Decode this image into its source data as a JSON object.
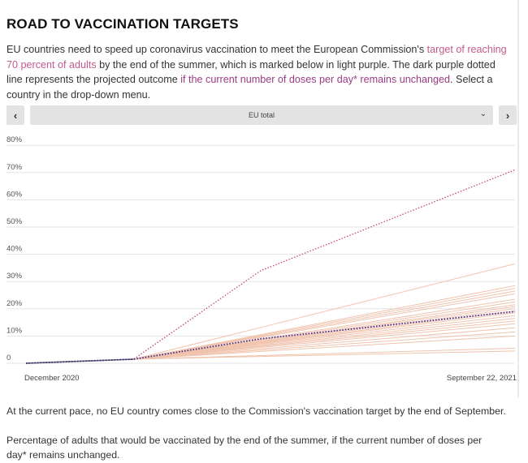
{
  "title": "ROAD TO VACCINATION TARGETS",
  "intro": {
    "part1": "EU countries need to speed up coronavirus vaccination to meet the European Commission's ",
    "link1": "target of reaching 70 percent of adults",
    "part2": " by the end of the summer, which is marked below in light purple. The dark purple dotted line represents the projected outcome ",
    "link2": "if the current number of doses per day* remains unchanged",
    "part3": ". Select a country in the drop-down menu."
  },
  "selector": {
    "prev_icon": "‹",
    "next_icon": "›",
    "selected": "EU total",
    "chevron_icon": "⌄"
  },
  "notes": {
    "pace": "At the current pace, no EU country comes close to the Commission's vaccination target by the end of September.",
    "caption": "Percentage of adults that would be vaccinated by the end of the summer, if the current number of doses per day* remains unchanged."
  },
  "colors": {
    "target_line": "#c9457e",
    "projection_line": "#3b2a8a",
    "country_lines": "#f0c3ad",
    "grid": "#e6e6e6",
    "highlight_link": "#c45a8c",
    "projection_link": "#9b3b84"
  },
  "chart_data": {
    "type": "line",
    "title": "",
    "xlabel": "",
    "ylabel": "",
    "ylim": [
      0,
      80
    ],
    "grid": true,
    "x_tick_labels": [
      "December 2020",
      "September 22, 2021"
    ],
    "y_ticks": [
      0,
      10,
      20,
      30,
      40,
      50,
      60,
      70,
      80
    ],
    "y_tick_labels": [
      "0",
      "10%",
      "20%",
      "30%",
      "40%",
      "50%",
      "60%",
      "70%",
      "80%"
    ],
    "x": [
      0,
      0.22,
      0.48,
      1
    ],
    "country_series_end_values": [
      36.5,
      28.5,
      27.5,
      26.5,
      25.5,
      23.5,
      22.5,
      21.5,
      20.8,
      20,
      19.2,
      18.5,
      17.5,
      16.5,
      15.5,
      14.5,
      13,
      11.5,
      10,
      5.5,
      4.5
    ],
    "series": [
      {
        "role": "target",
        "values": [
          0,
          1.5,
          34,
          71
        ]
      },
      {
        "role": "projection",
        "values": [
          0,
          1.5,
          9,
          19
        ]
      }
    ]
  }
}
